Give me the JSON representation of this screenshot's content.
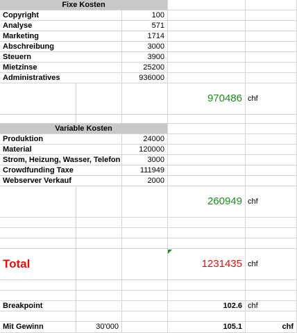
{
  "fixe_kosten": {
    "header": "Fixe Kosten",
    "rows": [
      {
        "label": "Copyright",
        "value": "100"
      },
      {
        "label": "Analyse",
        "value": "571"
      },
      {
        "label": "Marketing",
        "value": "1714"
      },
      {
        "label": "Abschreibung",
        "value": "3000"
      },
      {
        "label": "Steuern",
        "value": "3900"
      },
      {
        "label": "Mietzinse",
        "value": "25200"
      },
      {
        "label": "Administratives",
        "value": "936000"
      }
    ],
    "total": "970486",
    "unit": "chf"
  },
  "variable_kosten": {
    "header": "Variable Kosten",
    "rows": [
      {
        "label": "Produktion",
        "value": "24000"
      },
      {
        "label": "Material",
        "value": "120000"
      },
      {
        "label": "Strom, Heizung, Wasser, Telefon",
        "value": "3000"
      },
      {
        "label": "Crowdfunding Taxe",
        "value": "111949"
      },
      {
        "label": "Webserver Verkauf",
        "value": "2000"
      }
    ],
    "total": "260949",
    "unit": "chf"
  },
  "total": {
    "label": "Total",
    "value": "1231435",
    "unit": "chf"
  },
  "breakpoint": {
    "label": "Breakpoint",
    "value": "102.6",
    "unit": "chf"
  },
  "mit_gewinn": {
    "label": "Mit Gewinn",
    "amount": "30'000",
    "value": "105.1",
    "unit": "chf"
  },
  "colors": {
    "total_green": "#1f8a1f",
    "total_red": "#e01010",
    "header_gray": "#c8c8c8"
  }
}
